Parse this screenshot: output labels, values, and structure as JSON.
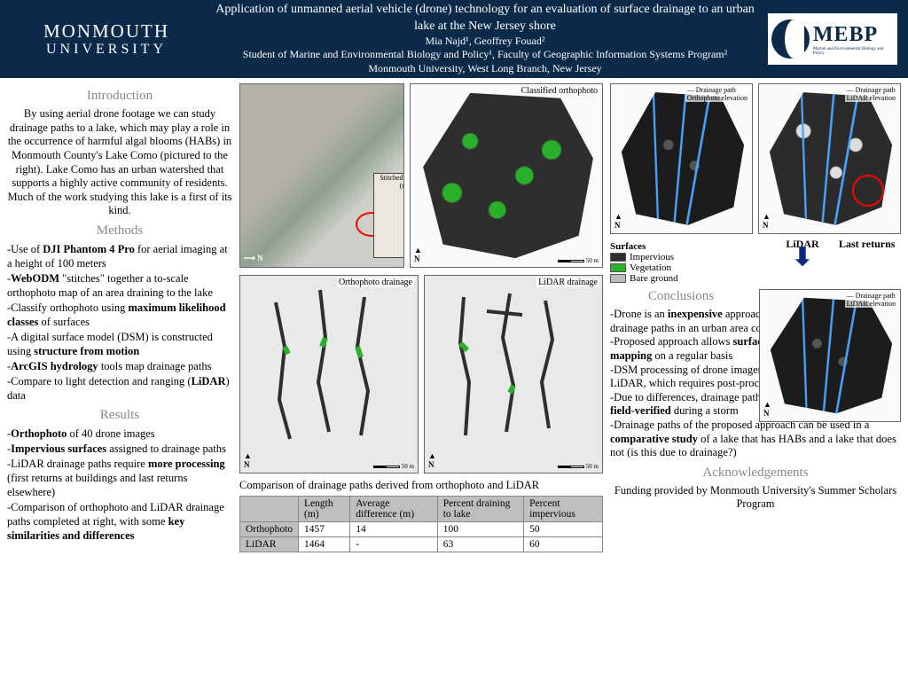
{
  "header": {
    "univ_l1": "MONMOUTH",
    "univ_l2": "UNIVERSITY",
    "title": "Application of unmanned aerial vehicle (drone) technology for an evaluation of surface drainage to an urban lake at the New Jersey shore",
    "authors": "Mia Najd¹, Geoffrey Fouad²",
    "affil": "Student of Marine and Environmental Biology and Policy¹, Faculty of Geographic Information Systems Program²",
    "inst": "Monmouth University, West Long Branch, New Jersey",
    "mebp": "MEBP",
    "mebp_sub": "Marine and Environmental Biology and Policy"
  },
  "sections": {
    "intro_h": "Introduction",
    "intro": "By using aerial drone footage we can study drainage paths to a lake, which may play a role in the occurrence of harmful algal blooms (HABs) in Monmouth County's Lake Como (pictured to the right). Lake Como has an urban watershed that supports a highly active community of residents. Much of the work studying this lake is a first of its kind.",
    "methods_h": "Methods",
    "results_h": "Results",
    "concl_h": "Conclusions",
    "ack_h": "Acknowledgements",
    "ack": "Funding provided by Monmouth University's Summer Scholars Program"
  },
  "methods": [
    "-Use of <b>DJI Phantom 4 Pro</b> for aerial imaging at a height of 100 meters",
    "-<b>WebODM</b> \"stitches\" together a to-scale orthophoto map of an area draining to the lake",
    "-Classify orthophoto using <b>maximum likelihood classes</b> of surfaces",
    "-A digital surface model (DSM) is constructed using <b>structure from motion</b>",
    "-<b>ArcGIS hydrology</b> tools map drainage paths",
    "-Compare to light detection and ranging (<b>LiDAR</b>) data"
  ],
  "results": [
    "-<b>Orthophoto</b> of 40 drone images",
    "-<b>Impervious surfaces</b> assigned to drainage paths",
    "-LiDAR drainage paths require <b>more processing</b> (first returns at buildings and last returns elsewhere)",
    "-Comparison of orthophoto and LiDAR drainage paths completed at right, with some <b>key similarities and differences</b>"
  ],
  "conclusions": [
    "-Drone is an <b>inexpensive</b> approach to map high-resolution drainage paths in an urban area compared to LiDAR",
    "-Proposed approach allows <b>surface classification</b> and <b>return mapping</b> on a regular basis",
    "-DSM processing of drone imagery is <b>automated</b> as opposed to LiDAR, which requires post-processing",
    "-Due to differences, drainage paths of both approaches need to be <b>field-verified</b> during a storm",
    "-Drainage paths of the proposed approach can be used in a <b>comparative study</b> of a lake that has HABs and a lake that does not (is this due to drainage?)"
  ],
  "maps": {
    "classified": "Classified orthophoto",
    "stitched": "Stitched orthophoto (map)",
    "ortho_drain": "Orthophoto drainage",
    "lidar_drain": "LiDAR drainage",
    "drain_path": "Drainage path",
    "ortho_elev": "Orthophoto elevation",
    "lidar_elev": "LiDAR elevation",
    "lidar_label": "LiDAR",
    "last_returns": "Last returns",
    "n": "N",
    "scale": "50 m"
  },
  "legend": {
    "title": "Surfaces",
    "items": [
      {
        "label": "Impervious",
        "color": "#2e2e2e"
      },
      {
        "label": "Vegetation",
        "color": "#2bb02b"
      },
      {
        "label": "Bare ground",
        "color": "#bdbdbd"
      }
    ]
  },
  "table": {
    "caption": "Comparison of drainage paths derived from orthophoto and LiDAR",
    "columns": [
      "",
      "Length (m)",
      "Average difference (m)",
      "Percent draining to lake",
      "Percent impervious"
    ],
    "rows": [
      [
        "Orthophoto",
        "1457",
        "14",
        "100",
        "50"
      ],
      [
        "LiDAR",
        "1464",
        "-",
        "63",
        "60"
      ]
    ],
    "header_bg": "#bfbfbf"
  },
  "colors": {
    "header_bg": "#0b2a4a",
    "drain_line": "#4aa3ff",
    "veg": "#2bb02b",
    "imperv": "#2e2e2e"
  }
}
